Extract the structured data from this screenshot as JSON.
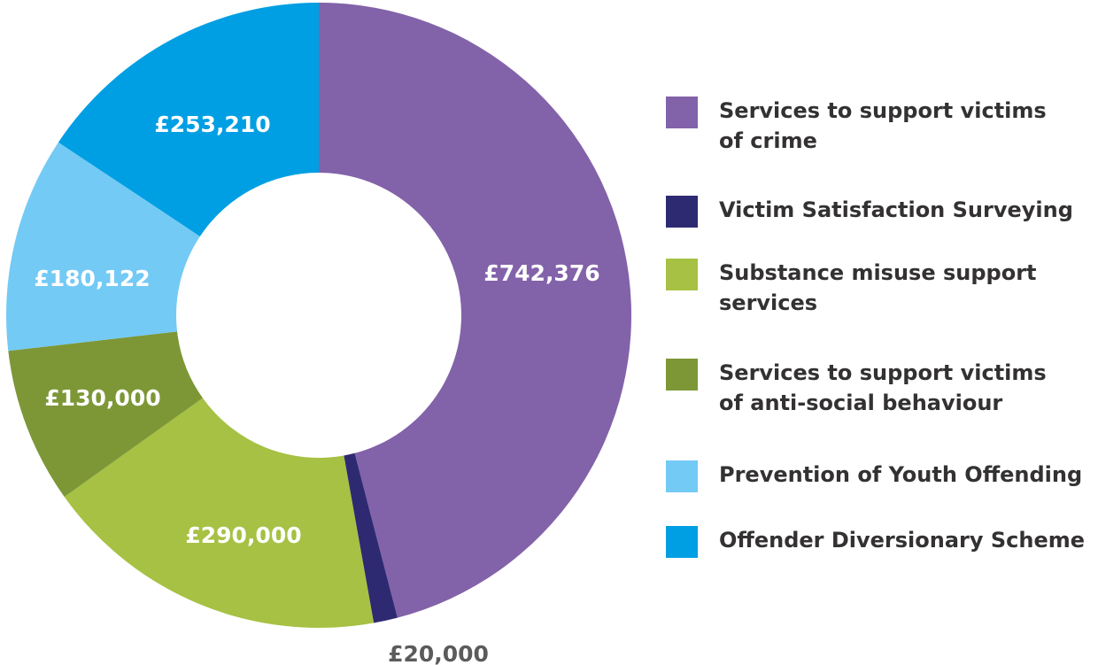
{
  "chart_data": {
    "type": "pie",
    "variant": "donut",
    "title": "",
    "slices": [
      {
        "label": "Services to support victims of crime",
        "value": 742376,
        "display": "£742,376",
        "color": "#8262A9",
        "label_color": "#ffffff"
      },
      {
        "label": "Victim Satisfaction Surveying",
        "value": 20000,
        "display": "£20,000",
        "color": "#2E2A71",
        "label_color": "#5C5B5C"
      },
      {
        "label": "Substance misuse support services",
        "value": 290000,
        "display": "£290,000",
        "color": "#A6C143",
        "label_color": "#ffffff"
      },
      {
        "label": "Services to support victims of anti-social behaviour",
        "value": 130000,
        "display": "£130,000",
        "color": "#7D9737",
        "label_color": "#ffffff"
      },
      {
        "label": "Prevention of Youth Offending",
        "value": 180122,
        "display": "£180,122",
        "color": "#73CAF5",
        "label_color": "#ffffff"
      },
      {
        "label": "Offender Diversionary Scheme",
        "value": 253210,
        "display": "£253,210",
        "color": "#009FE3",
        "label_color": "#ffffff"
      }
    ],
    "legend_position": "right"
  },
  "legend": {
    "items": [
      {
        "lines": [
          "Services to support victims",
          "of crime"
        ]
      },
      {
        "lines": [
          "Victim Satisfaction Surveying"
        ]
      },
      {
        "lines": [
          "Substance misuse support",
          "services"
        ]
      },
      {
        "lines": [
          "Services to support victims",
          "of anti-social behaviour"
        ]
      },
      {
        "lines": [
          "Prevention of Youth Offending"
        ]
      },
      {
        "lines": [
          "Offender Diversionary Scheme"
        ]
      }
    ]
  }
}
